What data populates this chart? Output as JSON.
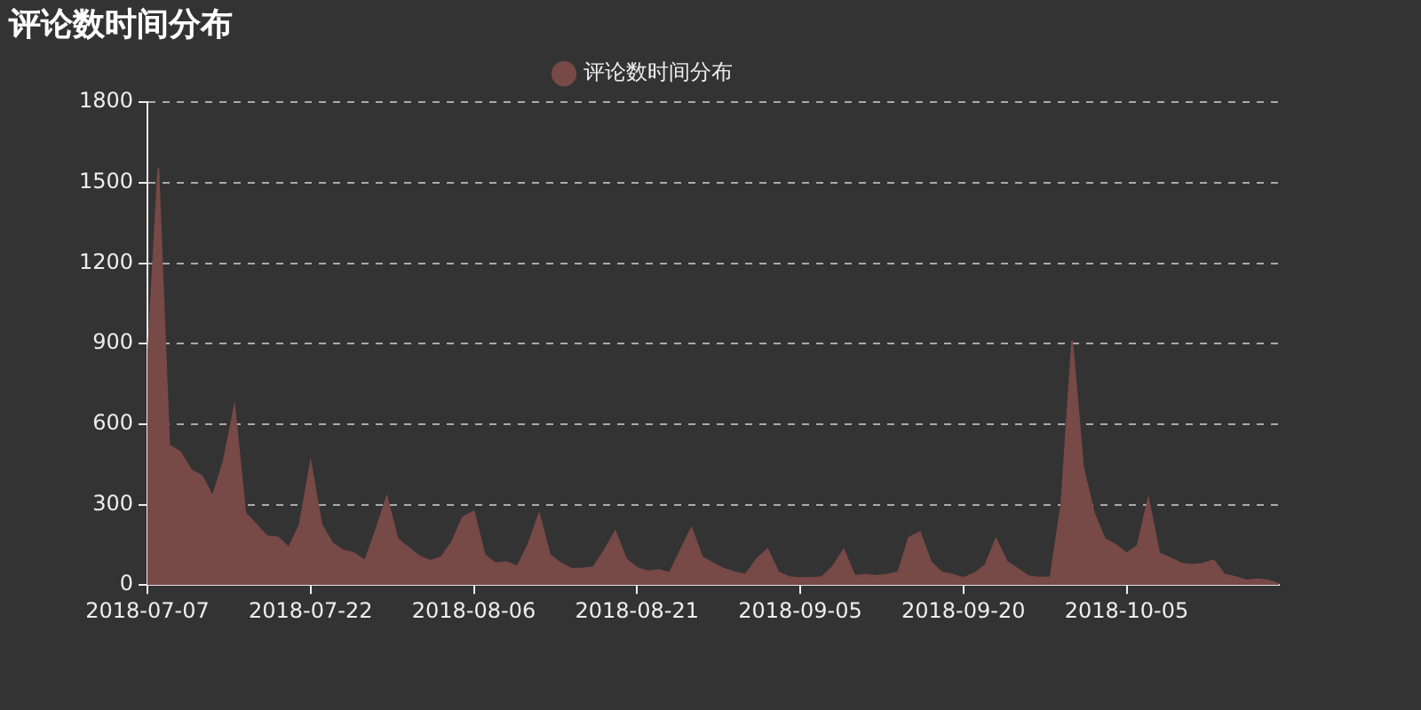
{
  "chart_data": {
    "type": "area",
    "title": "评论数时间分布",
    "x": [
      "2018-07-07",
      "2018-07-08",
      "2018-07-09",
      "2018-07-10",
      "2018-07-11",
      "2018-07-12",
      "2018-07-13",
      "2018-07-14",
      "2018-07-15",
      "2018-07-16",
      "2018-07-17",
      "2018-07-18",
      "2018-07-19",
      "2018-07-20",
      "2018-07-21",
      "2018-07-22",
      "2018-07-23",
      "2018-07-24",
      "2018-07-25",
      "2018-07-26",
      "2018-07-27",
      "2018-07-28",
      "2018-07-29",
      "2018-07-30",
      "2018-07-31",
      "2018-08-01",
      "2018-08-02",
      "2018-08-03",
      "2018-08-04",
      "2018-08-05",
      "2018-08-06",
      "2018-08-07",
      "2018-08-08",
      "2018-08-09",
      "2018-08-10",
      "2018-08-11",
      "2018-08-12",
      "2018-08-13",
      "2018-08-14",
      "2018-08-15",
      "2018-08-16",
      "2018-08-17",
      "2018-08-18",
      "2018-08-19",
      "2018-08-20",
      "2018-08-21",
      "2018-08-22",
      "2018-08-23",
      "2018-08-24",
      "2018-08-25",
      "2018-08-26",
      "2018-08-27",
      "2018-08-28",
      "2018-08-29",
      "2018-08-30",
      "2018-08-31",
      "2018-09-01",
      "2018-09-02",
      "2018-09-03",
      "2018-09-04",
      "2018-09-05",
      "2018-09-06",
      "2018-09-07",
      "2018-09-08",
      "2018-09-09",
      "2018-09-10",
      "2018-09-11",
      "2018-09-12",
      "2018-09-13",
      "2018-09-14",
      "2018-09-15",
      "2018-09-16",
      "2018-09-17",
      "2018-09-18",
      "2018-09-19",
      "2018-09-20",
      "2018-09-21",
      "2018-09-22",
      "2018-09-23",
      "2018-09-24",
      "2018-09-25",
      "2018-09-26",
      "2018-09-27",
      "2018-09-28",
      "2018-09-29",
      "2018-09-30",
      "2018-10-01",
      "2018-10-02",
      "2018-10-03",
      "2018-10-04",
      "2018-10-05",
      "2018-10-06",
      "2018-10-07",
      "2018-10-08",
      "2018-10-09",
      "2018-10-10",
      "2018-10-11",
      "2018-10-12",
      "2018-10-13",
      "2018-10-14",
      "2018-10-15",
      "2018-10-16",
      "2018-10-17",
      "2018-10-18",
      "2018-10-19"
    ],
    "series": [
      {
        "name": "评论数时间分布",
        "color": "#774947",
        "values": [
          817,
          1554,
          521,
          497,
          429,
          407,
          330,
          461,
          664,
          268,
          225,
          182,
          178,
          139,
          225,
          456,
          225,
          156,
          129,
          118,
          90,
          204,
          328,
          171,
          139,
          107,
          90,
          103,
          161,
          253,
          274,
          111,
          81,
          86,
          69,
          150,
          264,
          111,
          81,
          60,
          62,
          66,
          129,
          199,
          96,
          64,
          51,
          56,
          45,
          129,
          212,
          103,
          81,
          60,
          47,
          39,
          96,
          133,
          47,
          30,
          26,
          26,
          30,
          69,
          131,
          34,
          39,
          34,
          39,
          47,
          176,
          197,
          86,
          47,
          39,
          26,
          43,
          73,
          171,
          86,
          60,
          32,
          28,
          28,
          300,
          911,
          440,
          268,
          171,
          150,
          118,
          146,
          321,
          118,
          101,
          81,
          75,
          79,
          92,
          39,
          30,
          17,
          21,
          17,
          4
        ]
      }
    ],
    "xlim": [
      "2018-07-07",
      "2018-10-19"
    ],
    "xticks": [
      "2018-07-07",
      "2018-07-22",
      "2018-08-06",
      "2018-08-21",
      "2018-09-05",
      "2018-09-20",
      "2018-10-05"
    ],
    "ylim": [
      0,
      1800
    ],
    "yticks": [
      0,
      300,
      600,
      900,
      1200,
      1500,
      1800
    ],
    "grid": "y",
    "legend": "top",
    "marker": "none"
  }
}
